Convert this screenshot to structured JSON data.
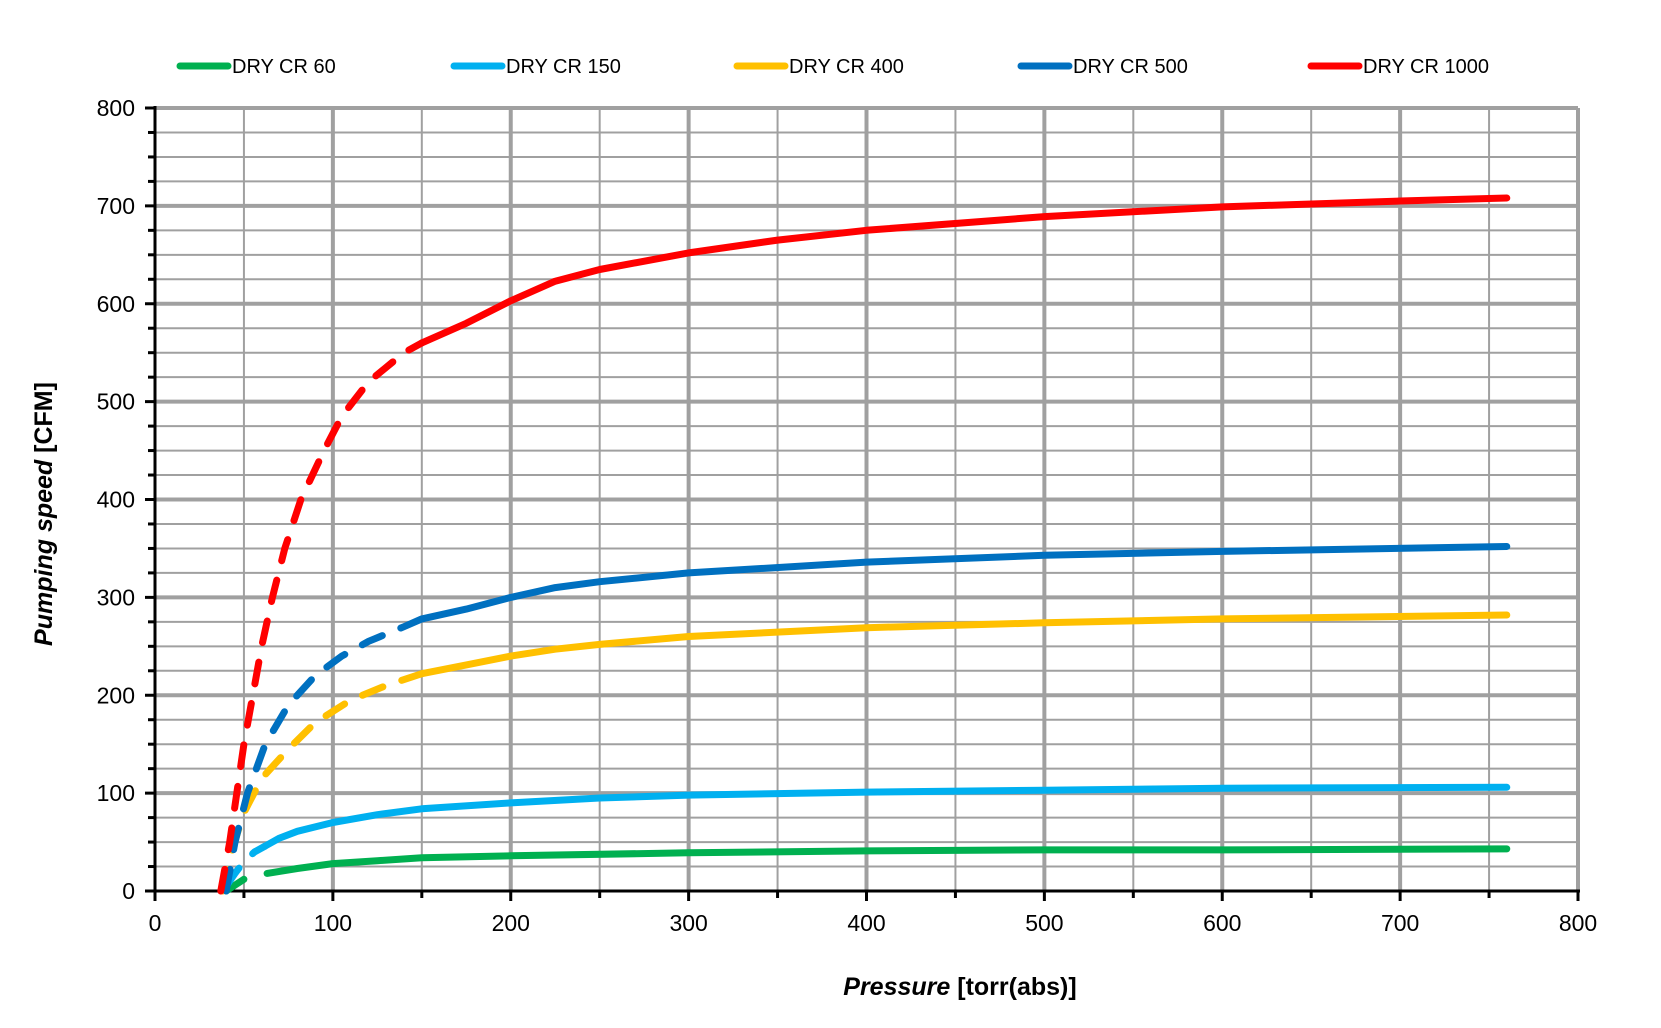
{
  "chart_data": {
    "type": "line",
    "xlabel_italic": "Pressure",
    "xlabel_rest": " [torr(abs)]",
    "ylabel_italic": "Pumping speed",
    "ylabel_rest": " [CFM]",
    "xlim": [
      0,
      800
    ],
    "ylim": [
      0,
      800
    ],
    "xticks": [
      0,
      100,
      200,
      300,
      400,
      500,
      600,
      700,
      800
    ],
    "yticks": [
      0,
      100,
      200,
      300,
      400,
      500,
      600,
      700,
      800
    ],
    "grid": true,
    "legend_position": "top",
    "series": [
      {
        "name": "DRY CR 60",
        "color": "#00b050",
        "dashed": [
          [
            40,
            0
          ],
          [
            45,
            6
          ],
          [
            50,
            12
          ]
        ],
        "solid": [
          [
            63,
            18
          ],
          [
            80,
            23
          ],
          [
            100,
            28
          ],
          [
            125,
            31
          ],
          [
            150,
            34
          ],
          [
            200,
            36
          ],
          [
            300,
            39
          ],
          [
            400,
            41
          ],
          [
            500,
            42
          ],
          [
            600,
            42
          ],
          [
            760,
            43
          ]
        ]
      },
      {
        "name": "DRY CR 150",
        "color": "#00b0f0",
        "dashed": [
          [
            40,
            5
          ],
          [
            45,
            18
          ],
          [
            50,
            30
          ],
          [
            56,
            40
          ],
          [
            62,
            46
          ]
        ],
        "solid": [
          [
            62,
            46
          ],
          [
            70,
            54
          ],
          [
            80,
            61
          ],
          [
            100,
            70
          ],
          [
            125,
            78
          ],
          [
            150,
            84
          ],
          [
            200,
            90
          ],
          [
            250,
            95
          ],
          [
            300,
            98
          ],
          [
            400,
            101
          ],
          [
            500,
            103
          ],
          [
            600,
            105
          ],
          [
            760,
            106
          ]
        ]
      },
      {
        "name": "DRY CR 400",
        "color": "#ffc000",
        "dashed": [
          [
            38,
            0
          ],
          [
            43,
            40
          ],
          [
            50,
            80
          ],
          [
            60,
            115
          ],
          [
            75,
            145
          ],
          [
            90,
            172
          ],
          [
            110,
            195
          ],
          [
            130,
            210
          ],
          [
            150,
            222
          ]
        ],
        "solid": [
          [
            150,
            222
          ],
          [
            175,
            231
          ],
          [
            200,
            240
          ],
          [
            225,
            247
          ],
          [
            250,
            252
          ],
          [
            300,
            260
          ],
          [
            400,
            269
          ],
          [
            500,
            274
          ],
          [
            600,
            278
          ],
          [
            760,
            282
          ]
        ]
      },
      {
        "name": "DRY CR 500",
        "color": "#0070c0",
        "dashed": [
          [
            40,
            0
          ],
          [
            45,
            50
          ],
          [
            52,
            100
          ],
          [
            62,
            150
          ],
          [
            75,
            190
          ],
          [
            90,
            220
          ],
          [
            105,
            240
          ],
          [
            120,
            255
          ],
          [
            140,
            270
          ],
          [
            150,
            278
          ]
        ],
        "solid": [
          [
            150,
            278
          ],
          [
            175,
            288
          ],
          [
            200,
            300
          ],
          [
            225,
            310
          ],
          [
            250,
            316
          ],
          [
            300,
            325
          ],
          [
            400,
            336
          ],
          [
            500,
            343
          ],
          [
            600,
            347
          ],
          [
            760,
            352
          ]
        ]
      },
      {
        "name": "DRY CR 1000",
        "color": "#ff0000",
        "dashed": [
          [
            37,
            0
          ],
          [
            42,
            50
          ],
          [
            46,
            100
          ],
          [
            50,
            150
          ],
          [
            55,
            200
          ],
          [
            60,
            250
          ],
          [
            66,
            300
          ],
          [
            73,
            350
          ],
          [
            82,
            400
          ],
          [
            95,
            450
          ],
          [
            105,
            485
          ],
          [
            120,
            520
          ],
          [
            140,
            550
          ],
          [
            150,
            560
          ]
        ],
        "solid": [
          [
            150,
            560
          ],
          [
            175,
            580
          ],
          [
            200,
            603
          ],
          [
            225,
            623
          ],
          [
            250,
            635
          ],
          [
            300,
            652
          ],
          [
            350,
            665
          ],
          [
            400,
            675
          ],
          [
            500,
            689
          ],
          [
            600,
            699
          ],
          [
            700,
            705
          ],
          [
            760,
            708
          ]
        ]
      }
    ]
  }
}
